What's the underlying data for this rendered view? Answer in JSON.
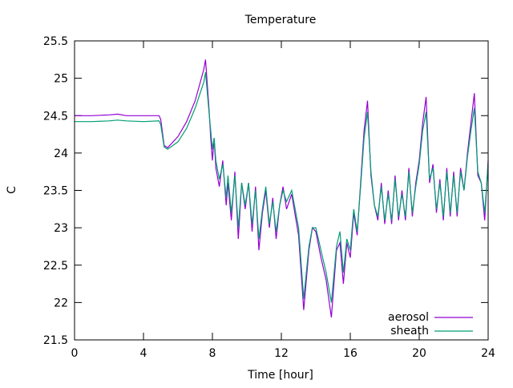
{
  "chart_data": {
    "type": "line",
    "title": "Temperature",
    "xlabel": "Time [hour]",
    "ylabel": "C",
    "xlim": [
      0,
      24
    ],
    "ylim": [
      21.5,
      25.5
    ],
    "xticks": [
      0,
      4,
      8,
      12,
      16,
      20,
      24
    ],
    "yticks": [
      21.5,
      22,
      22.5,
      23,
      23.5,
      24,
      24.5,
      25,
      25.5
    ],
    "ytick_labels": [
      "21.5",
      "22",
      "22.5",
      "23",
      "23.5",
      "24",
      "24.5",
      "25",
      "25.5"
    ],
    "xtick_labels": [
      "0",
      "4",
      "8",
      "12",
      "16",
      "20",
      "24"
    ],
    "grid": false,
    "legend_position": "bottom-right",
    "series": [
      {
        "name": "aerosol",
        "color": "#9400d3",
        "x": [
          0,
          1,
          2,
          2.5,
          3,
          4,
          4.9,
          5.0,
          5.2,
          5.4,
          6.0,
          6.5,
          7.0,
          7.5,
          7.6,
          7.8,
          7.9,
          8.0,
          8.1,
          8.2,
          8.4,
          8.6,
          8.8,
          8.9,
          9.1,
          9.3,
          9.5,
          9.7,
          9.9,
          10.1,
          10.3,
          10.5,
          10.7,
          10.9,
          11.1,
          11.3,
          11.5,
          11.7,
          11.9,
          12.1,
          12.3,
          12.6,
          13.0,
          13.3,
          13.6,
          13.8,
          14.0,
          14.3,
          14.6,
          14.9,
          15.2,
          15.4,
          15.6,
          15.8,
          16.0,
          16.2,
          16.4,
          16.6,
          16.8,
          17.0,
          17.2,
          17.4,
          17.6,
          17.8,
          18.0,
          18.2,
          18.4,
          18.6,
          18.8,
          19.0,
          19.2,
          19.4,
          19.6,
          19.8,
          20.0,
          20.2,
          20.4,
          20.6,
          20.8,
          21.0,
          21.2,
          21.4,
          21.6,
          21.8,
          22.0,
          22.2,
          22.4,
          22.6,
          22.8,
          23.0,
          23.2,
          23.4,
          23.6,
          23.8,
          24.0
        ],
        "y": [
          24.5,
          24.5,
          24.51,
          24.52,
          24.5,
          24.5,
          24.5,
          24.45,
          24.1,
          24.07,
          24.22,
          24.42,
          24.7,
          25.12,
          25.25,
          24.6,
          24.2,
          23.9,
          24.2,
          23.8,
          23.55,
          23.9,
          23.3,
          23.6,
          23.1,
          23.75,
          22.85,
          23.6,
          23.25,
          23.6,
          22.95,
          23.55,
          22.7,
          23.2,
          23.5,
          23.0,
          23.4,
          22.85,
          23.3,
          23.55,
          23.25,
          23.45,
          22.9,
          21.9,
          22.7,
          23.0,
          22.95,
          22.6,
          22.3,
          21.8,
          22.7,
          22.8,
          22.25,
          22.8,
          22.6,
          23.2,
          22.9,
          23.6,
          24.3,
          24.7,
          23.7,
          23.3,
          23.1,
          23.6,
          23.05,
          23.5,
          23.05,
          23.7,
          23.1,
          23.5,
          23.1,
          23.8,
          23.15,
          23.6,
          23.9,
          24.4,
          24.75,
          23.6,
          23.85,
          23.2,
          23.65,
          23.1,
          23.8,
          23.15,
          23.75,
          23.15,
          23.8,
          23.5,
          24.0,
          24.4,
          24.8,
          23.7,
          23.6,
          23.1,
          23.9
        ]
      },
      {
        "name": "sheath",
        "color": "#009e73",
        "x": [
          0,
          1,
          2,
          2.5,
          3,
          4,
          4.9,
          5.0,
          5.2,
          5.4,
          6.0,
          6.5,
          7.0,
          7.5,
          7.6,
          7.8,
          7.9,
          8.0,
          8.1,
          8.2,
          8.4,
          8.6,
          8.8,
          8.9,
          9.1,
          9.3,
          9.5,
          9.7,
          9.9,
          10.1,
          10.3,
          10.5,
          10.7,
          10.9,
          11.1,
          11.3,
          11.5,
          11.7,
          11.9,
          12.1,
          12.3,
          12.6,
          13.0,
          13.3,
          13.6,
          13.8,
          14.0,
          14.3,
          14.6,
          14.9,
          15.2,
          15.4,
          15.6,
          15.8,
          16.0,
          16.2,
          16.4,
          16.6,
          16.8,
          17.0,
          17.2,
          17.4,
          17.6,
          17.8,
          18.0,
          18.2,
          18.4,
          18.6,
          18.8,
          19.0,
          19.2,
          19.4,
          19.6,
          19.8,
          20.0,
          20.2,
          20.4,
          20.6,
          20.8,
          21.0,
          21.2,
          21.4,
          21.6,
          21.8,
          22.0,
          22.2,
          22.4,
          22.6,
          22.8,
          23.0,
          23.2,
          23.4,
          23.6,
          23.8,
          24.0
        ],
        "y": [
          24.42,
          24.42,
          24.43,
          24.44,
          24.43,
          24.42,
          24.43,
          24.38,
          24.08,
          24.05,
          24.15,
          24.33,
          24.6,
          24.95,
          25.08,
          24.55,
          24.3,
          24.05,
          24.2,
          23.9,
          23.65,
          23.85,
          23.4,
          23.7,
          23.2,
          23.7,
          23.0,
          23.6,
          23.3,
          23.6,
          23.05,
          23.5,
          22.85,
          23.25,
          23.55,
          23.05,
          23.35,
          22.95,
          23.3,
          23.5,
          23.35,
          23.5,
          23.0,
          22.05,
          22.75,
          23.0,
          23.0,
          22.7,
          22.4,
          22.0,
          22.75,
          22.95,
          22.4,
          22.85,
          22.7,
          23.25,
          22.95,
          23.55,
          24.2,
          24.55,
          23.75,
          23.3,
          23.15,
          23.55,
          23.1,
          23.45,
          23.1,
          23.65,
          23.15,
          23.45,
          23.15,
          23.75,
          23.2,
          23.55,
          23.85,
          24.3,
          24.55,
          23.65,
          23.8,
          23.25,
          23.6,
          23.15,
          23.75,
          23.2,
          23.7,
          23.2,
          23.75,
          23.5,
          23.95,
          24.3,
          24.6,
          23.75,
          23.6,
          23.2,
          23.85
        ]
      }
    ]
  }
}
